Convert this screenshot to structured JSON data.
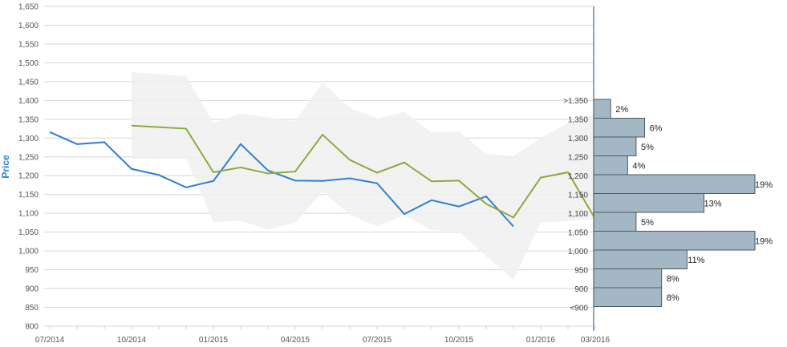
{
  "chart_data": {
    "type": "line",
    "ylabel": "Price",
    "ylim": [
      800,
      1650
    ],
    "yticks": [
      "800",
      "850",
      "900",
      "950",
      "1,000",
      "1,050",
      "1,100",
      "1,150",
      "1,200",
      "1,250",
      "1,300",
      "1,350",
      "1,400",
      "1,450",
      "1,500",
      "1,550",
      "1,600",
      "1,650"
    ],
    "xticks": [
      "07/2014",
      "10/2014",
      "01/2015",
      "04/2015",
      "07/2015",
      "10/2015",
      "01/2016",
      "03/2016"
    ],
    "grid": true,
    "colors": {
      "blue": "#2e7fd3",
      "green": "#8aab3c",
      "band": "#f0f0f0",
      "bar_fill": "#a3b8c4",
      "bar_stroke": "#4a5a63",
      "axis": "#3a6e8f"
    },
    "series": [
      {
        "x": [
          "2014-07",
          "2014-08",
          "2014-09",
          "2014-10",
          "2014-11",
          "2014-12",
          "2015-01",
          "2015-02",
          "2015-03",
          "2015-04",
          "2015-05",
          "2015-06",
          "2015-07",
          "2015-08",
          "2015-09",
          "2015-10",
          "2015-11",
          "2015-12"
        ],
        "values": [
          1316,
          1284,
          1289,
          1218,
          1202,
          1169,
          1186,
          1284,
          1214,
          1187,
          1186,
          1193,
          1180,
          1098,
          1135,
          1118,
          1145,
          1065
        ]
      },
      {
        "x": [
          "2014-10",
          "2014-12",
          "2015-01",
          "2015-02",
          "2015-03",
          "2015-04",
          "2015-05",
          "2015-06",
          "2015-07",
          "2015-08",
          "2015-09",
          "2015-10",
          "2015-11",
          "2015-12",
          "2016-01",
          "2016-02",
          "2016-03"
        ],
        "values": [
          1333,
          1325,
          1209,
          1222,
          1206,
          1211,
          1309,
          1242,
          1208,
          1235,
          1185,
          1187,
          1125,
          1089,
          1195,
          1209,
          1085
        ]
      }
    ],
    "band": {
      "x": [
        "2014-10",
        "2014-12",
        "2015-01",
        "2015-02",
        "2015-03",
        "2015-04",
        "2015-05",
        "2015-06",
        "2015-07",
        "2015-08",
        "2015-09",
        "2015-10",
        "2015-11",
        "2015-12",
        "2016-01",
        "2016-02",
        "2016-03"
      ],
      "upper": [
        1475,
        1465,
        1340,
        1365,
        1355,
        1345,
        1448,
        1380,
        1352,
        1370,
        1315,
        1318,
        1258,
        1252,
        1300,
        1340,
        1365
      ],
      "lower": [
        1245,
        1245,
        1077,
        1080,
        1057,
        1075,
        1158,
        1096,
        1065,
        1095,
        1055,
        1052,
        985,
        925,
        1075,
        1080,
        1085
      ]
    },
    "histogram": {
      "bins": [
        {
          "label": ">1,350",
          "pct": "2%",
          "value": 2
        },
        {
          "label": "1,350",
          "pct": "6%",
          "value": 6
        },
        {
          "label": "1,300",
          "pct": "5%",
          "value": 5
        },
        {
          "label": "1,250",
          "pct": "4%",
          "value": 4
        },
        {
          "label": "1,200",
          "pct": "19%",
          "value": 19
        },
        {
          "label": "1,150",
          "pct": "13%",
          "value": 13
        },
        {
          "label": "1,100",
          "pct": "5%",
          "value": 5
        },
        {
          "label": "1,050",
          "pct": "19%",
          "value": 19
        },
        {
          "label": "1,000",
          "pct": "11%",
          "value": 11
        },
        {
          "label": "950",
          "pct": "8%",
          "value": 8
        },
        {
          "label": "900",
          "pct": "8%",
          "value": 8
        },
        {
          "label": "<900",
          "pct": "",
          "value": 0
        }
      ]
    }
  }
}
